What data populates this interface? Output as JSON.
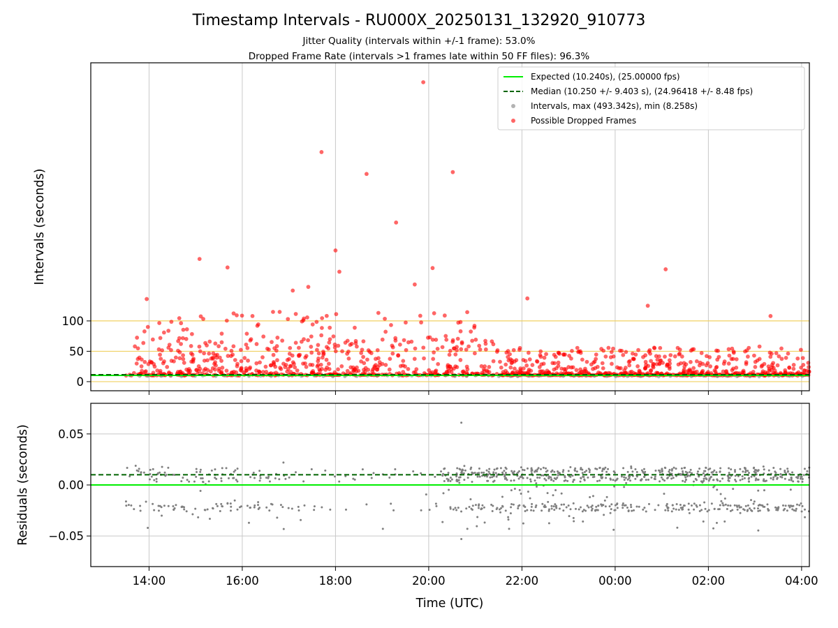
{
  "title": "Timestamp Intervals - RU000X_20250131_132920_910773",
  "subtitles": [
    "Jitter Quality (intervals within +/-1 frame): 53.0%",
    "Dropped Frame Rate (intervals >1 frames late within 50 FF files): 96.3%"
  ],
  "colors": {
    "expected": "#00ee00",
    "median": "#006400",
    "intervals": "#808080",
    "dropped": "#ff0000",
    "hline": "#f0d060",
    "grid": "#c8c8c8"
  },
  "chart_data": [
    {
      "type": "scatter",
      "ylabel": "Intervals (seconds)",
      "x_range": [
        "12:45",
        "04:10"
      ],
      "ylim": [
        -15,
        525
      ],
      "yticks": [
        0,
        50,
        100
      ],
      "ytick_labels": [
        "0",
        "50",
        "100"
      ],
      "grid": "vertical",
      "hlines": [
        0,
        50,
        100
      ],
      "legend_position": "top-right",
      "expected_interval": 10.24,
      "median_interval": 10.25,
      "legend": [
        {
          "key": "expected",
          "label": "Expected (10.240s), (25.00000 fps)",
          "style": "solid-line"
        },
        {
          "key": "median",
          "label": "Median (10.250 +/- 9.403 s), (24.96418 +/- 8.48 fps)",
          "style": "dashed-line"
        },
        {
          "key": "intervals",
          "label": "Intervals, max (493.342s), min (8.258s)",
          "style": "marker"
        },
        {
          "key": "dropped",
          "label": "Possible Dropped Frames",
          "style": "marker"
        }
      ],
      "series": [
        {
          "name": "Possible Dropped Frames",
          "notable_points": [
            {
              "x": "19:53",
              "y": 493
            },
            {
              "x": "17:42",
              "y": 378
            },
            {
              "x": "18:40",
              "y": 342
            },
            {
              "x": "20:31",
              "y": 345
            },
            {
              "x": "19:18",
              "y": 262
            },
            {
              "x": "18:00",
              "y": 216
            },
            {
              "x": "15:05",
              "y": 202
            },
            {
              "x": "15:41",
              "y": 188
            },
            {
              "x": "20:05",
              "y": 187
            },
            {
              "x": "01:05",
              "y": 185
            },
            {
              "x": "18:05",
              "y": 181
            },
            {
              "x": "13:57",
              "y": 136
            },
            {
              "x": "22:07",
              "y": 137
            },
            {
              "x": "00:42",
              "y": 125
            },
            {
              "x": "17:05",
              "y": 150
            },
            {
              "x": "17:25",
              "y": 156
            },
            {
              "x": "19:42",
              "y": 160
            },
            {
              "x": "03:20",
              "y": 108
            }
          ],
          "bulk_range": [
            10,
            60
          ],
          "band": [
            10,
            12
          ]
        },
        {
          "name": "Intervals, max (493.342s), min (8.258s)",
          "band": [
            8.3,
            10.3
          ]
        }
      ]
    },
    {
      "type": "scatter",
      "xlabel": "Time (UTC)",
      "ylabel": "Residuals (seconds)",
      "x_range": [
        "12:45",
        "04:10"
      ],
      "xticks": [
        "14:00",
        "16:00",
        "18:00",
        "20:00",
        "22:00",
        "00:00",
        "02:00",
        "04:00"
      ],
      "ylim": [
        -0.08,
        0.08
      ],
      "yticks": [
        -0.05,
        0.0,
        0.05
      ],
      "ytick_labels": [
        "−0.05",
        "0.00",
        "0.05"
      ],
      "grid": "both",
      "expected_residual": 0.0,
      "median_residual": 0.01,
      "series": [
        {
          "name": "Residuals",
          "notable_points": [
            {
              "x": "20:42",
              "y": 0.061
            },
            {
              "x": "20:42",
              "y": -0.053
            },
            {
              "x": "19:01",
              "y": -0.043
            },
            {
              "x": "16:53",
              "y": 0.022
            }
          ],
          "clusters": [
            0.01,
            -0.022
          ],
          "spread": [
            -0.045,
            0.02
          ]
        }
      ]
    }
  ]
}
